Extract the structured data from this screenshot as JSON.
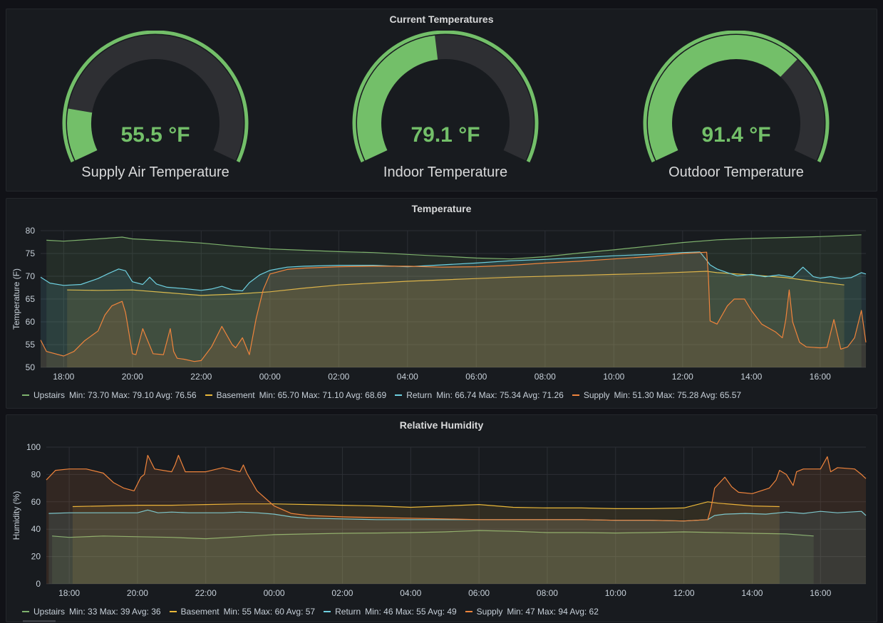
{
  "gauges_panel": {
    "title": "Current Temperatures",
    "gauges": [
      {
        "label": "Supply Air Temperature",
        "value_text": "55.5 °F",
        "fraction": 0.15
      },
      {
        "label": "Indoor Temperature",
        "value_text": "79.1 °F",
        "fraction": 0.47
      },
      {
        "label": "Outdoor Temperature",
        "value_text": "91.4 °F",
        "fraction": 0.69
      }
    ],
    "color_fill": "#73bf69",
    "color_track": "#2e2f33"
  },
  "temperature_panel": {
    "title": "Temperature",
    "legend": [
      {
        "name": "Upstairs",
        "stats": "Min: 73.70  Max: 79.10  Avg: 76.56",
        "color": "#7eb26d"
      },
      {
        "name": "Basement",
        "stats": "Min: 65.70  Max: 71.10  Avg: 68.69",
        "color": "#eab839"
      },
      {
        "name": "Return",
        "stats": "Min: 66.74  Max: 75.34  Avg: 71.26",
        "color": "#6ed0e0"
      },
      {
        "name": "Supply",
        "stats": "Min: 51.30  Max: 75.28  Avg: 65.57",
        "color": "#ef843c"
      }
    ]
  },
  "humidity_panel": {
    "title": "Relative Humidity",
    "legend": [
      {
        "name": "Upstairs",
        "stats": "Min: 33  Max: 39  Avg: 36",
        "color": "#7eb26d"
      },
      {
        "name": "Basement",
        "stats": "Min: 55  Max: 60  Avg: 57",
        "color": "#eab839"
      },
      {
        "name": "Return",
        "stats": "Min: 46  Max: 55  Avg: 49",
        "color": "#6ed0e0"
      },
      {
        "name": "Supply",
        "stats": "Min: 47  Max: 94  Avg: 62",
        "color": "#ef843c"
      }
    ]
  },
  "chart_data": [
    {
      "type": "area",
      "title": "Temperature",
      "ylabel": "Temperature (F)",
      "xlabel": "",
      "ylim": [
        50,
        80
      ],
      "yticks": [
        50,
        55,
        60,
        65,
        70,
        75,
        80
      ],
      "xlim": [
        17.33,
        41.33
      ],
      "xtick_values": [
        18,
        20,
        22,
        24,
        26,
        28,
        30,
        32,
        34,
        36,
        38,
        40
      ],
      "xticks": [
        "18:00",
        "20:00",
        "22:00",
        "00:00",
        "02:00",
        "04:00",
        "06:00",
        "08:00",
        "10:00",
        "12:00",
        "14:00",
        "16:00"
      ],
      "grid": true,
      "legend_position": "bottom",
      "series": [
        {
          "name": "Upstairs",
          "color": "#7eb26d",
          "x": [
            17.5,
            18,
            19,
            19.7,
            20,
            21,
            22,
            23,
            24,
            25,
            26,
            27,
            28,
            29,
            30,
            31,
            32,
            33,
            34,
            35,
            36,
            37,
            38,
            39,
            40,
            41.2
          ],
          "y": [
            77.9,
            77.7,
            78.2,
            78.6,
            78.2,
            77.8,
            77.3,
            76.6,
            76.0,
            75.7,
            75.4,
            75.2,
            74.8,
            74.4,
            74.0,
            73.8,
            74.3,
            75.1,
            75.8,
            76.6,
            77.4,
            78.0,
            78.3,
            78.5,
            78.7,
            79.1
          ]
        },
        {
          "name": "Basement",
          "color": "#eab839",
          "x": [
            18.1,
            19,
            20,
            21,
            22,
            23,
            24,
            25,
            26,
            27,
            28,
            29,
            30,
            31,
            32,
            33,
            34,
            35,
            36.7,
            37,
            38,
            39,
            40,
            40.7
          ],
          "y": [
            67.0,
            66.9,
            67.0,
            66.4,
            65.8,
            66.1,
            66.6,
            67.4,
            68.1,
            68.5,
            68.9,
            69.2,
            69.5,
            69.8,
            70.0,
            70.2,
            70.4,
            70.6,
            71.1,
            70.8,
            70.3,
            69.7,
            68.7,
            68.1
          ]
        },
        {
          "name": "Return",
          "color": "#6ed0e0",
          "x": [
            17.33,
            17.6,
            18,
            18.5,
            19,
            19.3,
            19.6,
            19.8,
            20,
            20.3,
            20.5,
            20.7,
            21,
            21.5,
            22,
            22.3,
            22.6,
            22.9,
            23.2,
            23.4,
            23.7,
            24,
            24.5,
            25,
            26,
            27,
            28,
            29,
            30,
            31,
            32,
            33,
            34,
            35,
            36,
            36.5,
            36.7,
            36.8,
            37,
            37.3,
            37.6,
            38,
            38.4,
            38.8,
            39.2,
            39.5,
            39.8,
            40,
            40.3,
            40.6,
            40.9,
            41.2,
            41.33
          ],
          "y": [
            69.8,
            68.5,
            68.0,
            68.2,
            69.5,
            70.6,
            71.6,
            71.2,
            68.8,
            68.2,
            69.8,
            68.3,
            67.6,
            67.3,
            66.9,
            67.2,
            67.8,
            67.0,
            66.8,
            68.6,
            70.3,
            71.3,
            72.0,
            72.2,
            72.4,
            72.4,
            72.1,
            72.5,
            72.9,
            73.4,
            73.7,
            74.1,
            74.5,
            74.8,
            75.2,
            75.34,
            73.5,
            72.5,
            71.6,
            70.8,
            70.1,
            70.4,
            69.9,
            70.3,
            69.8,
            72.0,
            69.9,
            69.6,
            69.9,
            69.5,
            69.7,
            70.8,
            70.5
          ]
        },
        {
          "name": "Supply",
          "color": "#ef843c",
          "x": [
            17.33,
            17.5,
            18,
            18.3,
            18.6,
            19,
            19.2,
            19.4,
            19.7,
            19.8,
            20,
            20.1,
            20.3,
            20.6,
            20.9,
            21.1,
            21.2,
            21.3,
            21.5,
            21.8,
            22,
            22.3,
            22.6,
            22.9,
            23,
            23.2,
            23.4,
            23.6,
            23.8,
            24,
            24.5,
            25,
            26,
            27,
            28,
            29,
            30,
            31,
            32,
            33,
            34,
            35,
            36,
            36.7,
            36.75,
            36.8,
            37,
            37.3,
            37.5,
            37.8,
            38,
            38.3,
            38.7,
            38.9,
            39,
            39.1,
            39.2,
            39.4,
            39.6,
            40,
            40.2,
            40.4,
            40.6,
            40.8,
            41,
            41.2,
            41.33
          ],
          "y": [
            56,
            53.5,
            52.5,
            53.5,
            55.8,
            58.0,
            61.5,
            63.5,
            64.5,
            62.0,
            53.0,
            52.8,
            58.5,
            53.0,
            52.8,
            58.5,
            53.5,
            52.0,
            51.8,
            51.3,
            51.5,
            54.5,
            59.0,
            55.0,
            54.3,
            56.5,
            52.8,
            60.8,
            67.0,
            70.5,
            71.5,
            71.8,
            72.1,
            72.2,
            72.2,
            72.0,
            72.1,
            72.4,
            72.9,
            73.3,
            73.8,
            74.3,
            75.0,
            75.28,
            70,
            60.2,
            59.5,
            63.5,
            65.0,
            65.0,
            62.5,
            59.5,
            57.8,
            56.5,
            60.5,
            67.0,
            60.0,
            55.5,
            54.5,
            54.3,
            54.4,
            60.5,
            54.0,
            54.5,
            56.5,
            62.5,
            55.5
          ]
        }
      ]
    },
    {
      "type": "area",
      "title": "Relative Humidity",
      "ylabel": "Humidity (%)",
      "xlabel": "",
      "ylim": [
        0,
        100
      ],
      "yticks": [
        0,
        20,
        40,
        60,
        80,
        100
      ],
      "xlim": [
        17.33,
        41.33
      ],
      "xtick_values": [
        18,
        20,
        22,
        24,
        26,
        28,
        30,
        32,
        34,
        36,
        38,
        40
      ],
      "xticks": [
        "18:00",
        "20:00",
        "22:00",
        "00:00",
        "02:00",
        "04:00",
        "06:00",
        "08:00",
        "10:00",
        "12:00",
        "14:00",
        "16:00"
      ],
      "grid": true,
      "legend_position": "bottom",
      "series": [
        {
          "name": "Upstairs",
          "color": "#7eb26d",
          "x": [
            17.5,
            18,
            19,
            20,
            21,
            22,
            23,
            24,
            25,
            26,
            27,
            28,
            29,
            30,
            31,
            32,
            33,
            34,
            35,
            36,
            37,
            38,
            39,
            39.8
          ],
          "y": [
            35,
            34,
            35,
            34.5,
            34,
            33,
            34.5,
            36,
            36.5,
            37,
            37.2,
            37.5,
            38,
            39,
            38.5,
            37.5,
            37.5,
            37.2,
            37.5,
            38,
            37.5,
            37,
            36.5,
            35
          ]
        },
        {
          "name": "Basement",
          "color": "#eab839",
          "x": [
            18.1,
            19,
            20,
            21,
            22,
            23,
            24,
            25,
            26,
            27,
            28,
            29,
            30,
            31,
            32,
            33,
            34,
            35,
            36,
            36.7,
            37,
            37.5,
            38,
            38.8
          ],
          "y": [
            56.5,
            57,
            57.5,
            57.5,
            58,
            58.5,
            58.5,
            58,
            57.5,
            57,
            56,
            57,
            58,
            56,
            55.5,
            55.5,
            55,
            55,
            55.5,
            60,
            59,
            58,
            57,
            56.5
          ]
        },
        {
          "name": "Return",
          "color": "#6ed0e0",
          "x": [
            17.4,
            18,
            19,
            20,
            20.3,
            20.6,
            21,
            21.5,
            22,
            22.5,
            23,
            23.5,
            24,
            24.5,
            25,
            26,
            27,
            28,
            29,
            30,
            31,
            32,
            33,
            34,
            35,
            36,
            36.7,
            36.9,
            37.2,
            37.8,
            38.4,
            39,
            39.5,
            40,
            40.5,
            41.2,
            41.33
          ],
          "y": [
            51.5,
            52,
            52,
            52,
            54,
            52,
            52.5,
            52,
            52,
            52,
            52.5,
            52,
            51,
            49,
            48,
            47.5,
            47,
            47,
            47,
            47,
            47,
            47,
            47,
            46.5,
            46.5,
            46,
            47,
            50,
            51,
            51.5,
            51,
            52.5,
            51.5,
            53,
            52,
            53,
            50
          ]
        },
        {
          "name": "Supply",
          "color": "#ef843c",
          "x": [
            17.33,
            17.6,
            18,
            18.5,
            19,
            19.3,
            19.6,
            19.9,
            20.1,
            20.2,
            20.3,
            20.5,
            21,
            21.1,
            21.2,
            21.4,
            22,
            22.5,
            23,
            23.1,
            23.2,
            23.5,
            24,
            24.5,
            25,
            26,
            27,
            28,
            29,
            30,
            31,
            32,
            33,
            34,
            35,
            36,
            36.7,
            36.8,
            36.9,
            37.2,
            37.4,
            37.6,
            38,
            38.5,
            38.7,
            38.8,
            39,
            39.2,
            39.3,
            39.5,
            40,
            40.2,
            40.3,
            40.5,
            41,
            41.2,
            41.33
          ],
          "y": [
            76,
            83,
            84,
            84,
            81,
            74,
            70,
            68,
            78,
            80,
            94,
            84,
            82,
            87,
            94,
            82,
            82,
            85,
            82,
            87,
            81,
            68,
            57,
            51.5,
            50,
            49,
            48.5,
            48,
            47.5,
            47,
            47,
            47,
            47,
            46.5,
            46.5,
            46,
            47,
            56,
            70,
            78,
            71,
            67,
            66,
            70,
            76,
            83,
            80,
            72,
            82,
            84,
            84,
            93,
            82,
            85,
            84,
            80,
            77
          ]
        }
      ]
    }
  ]
}
